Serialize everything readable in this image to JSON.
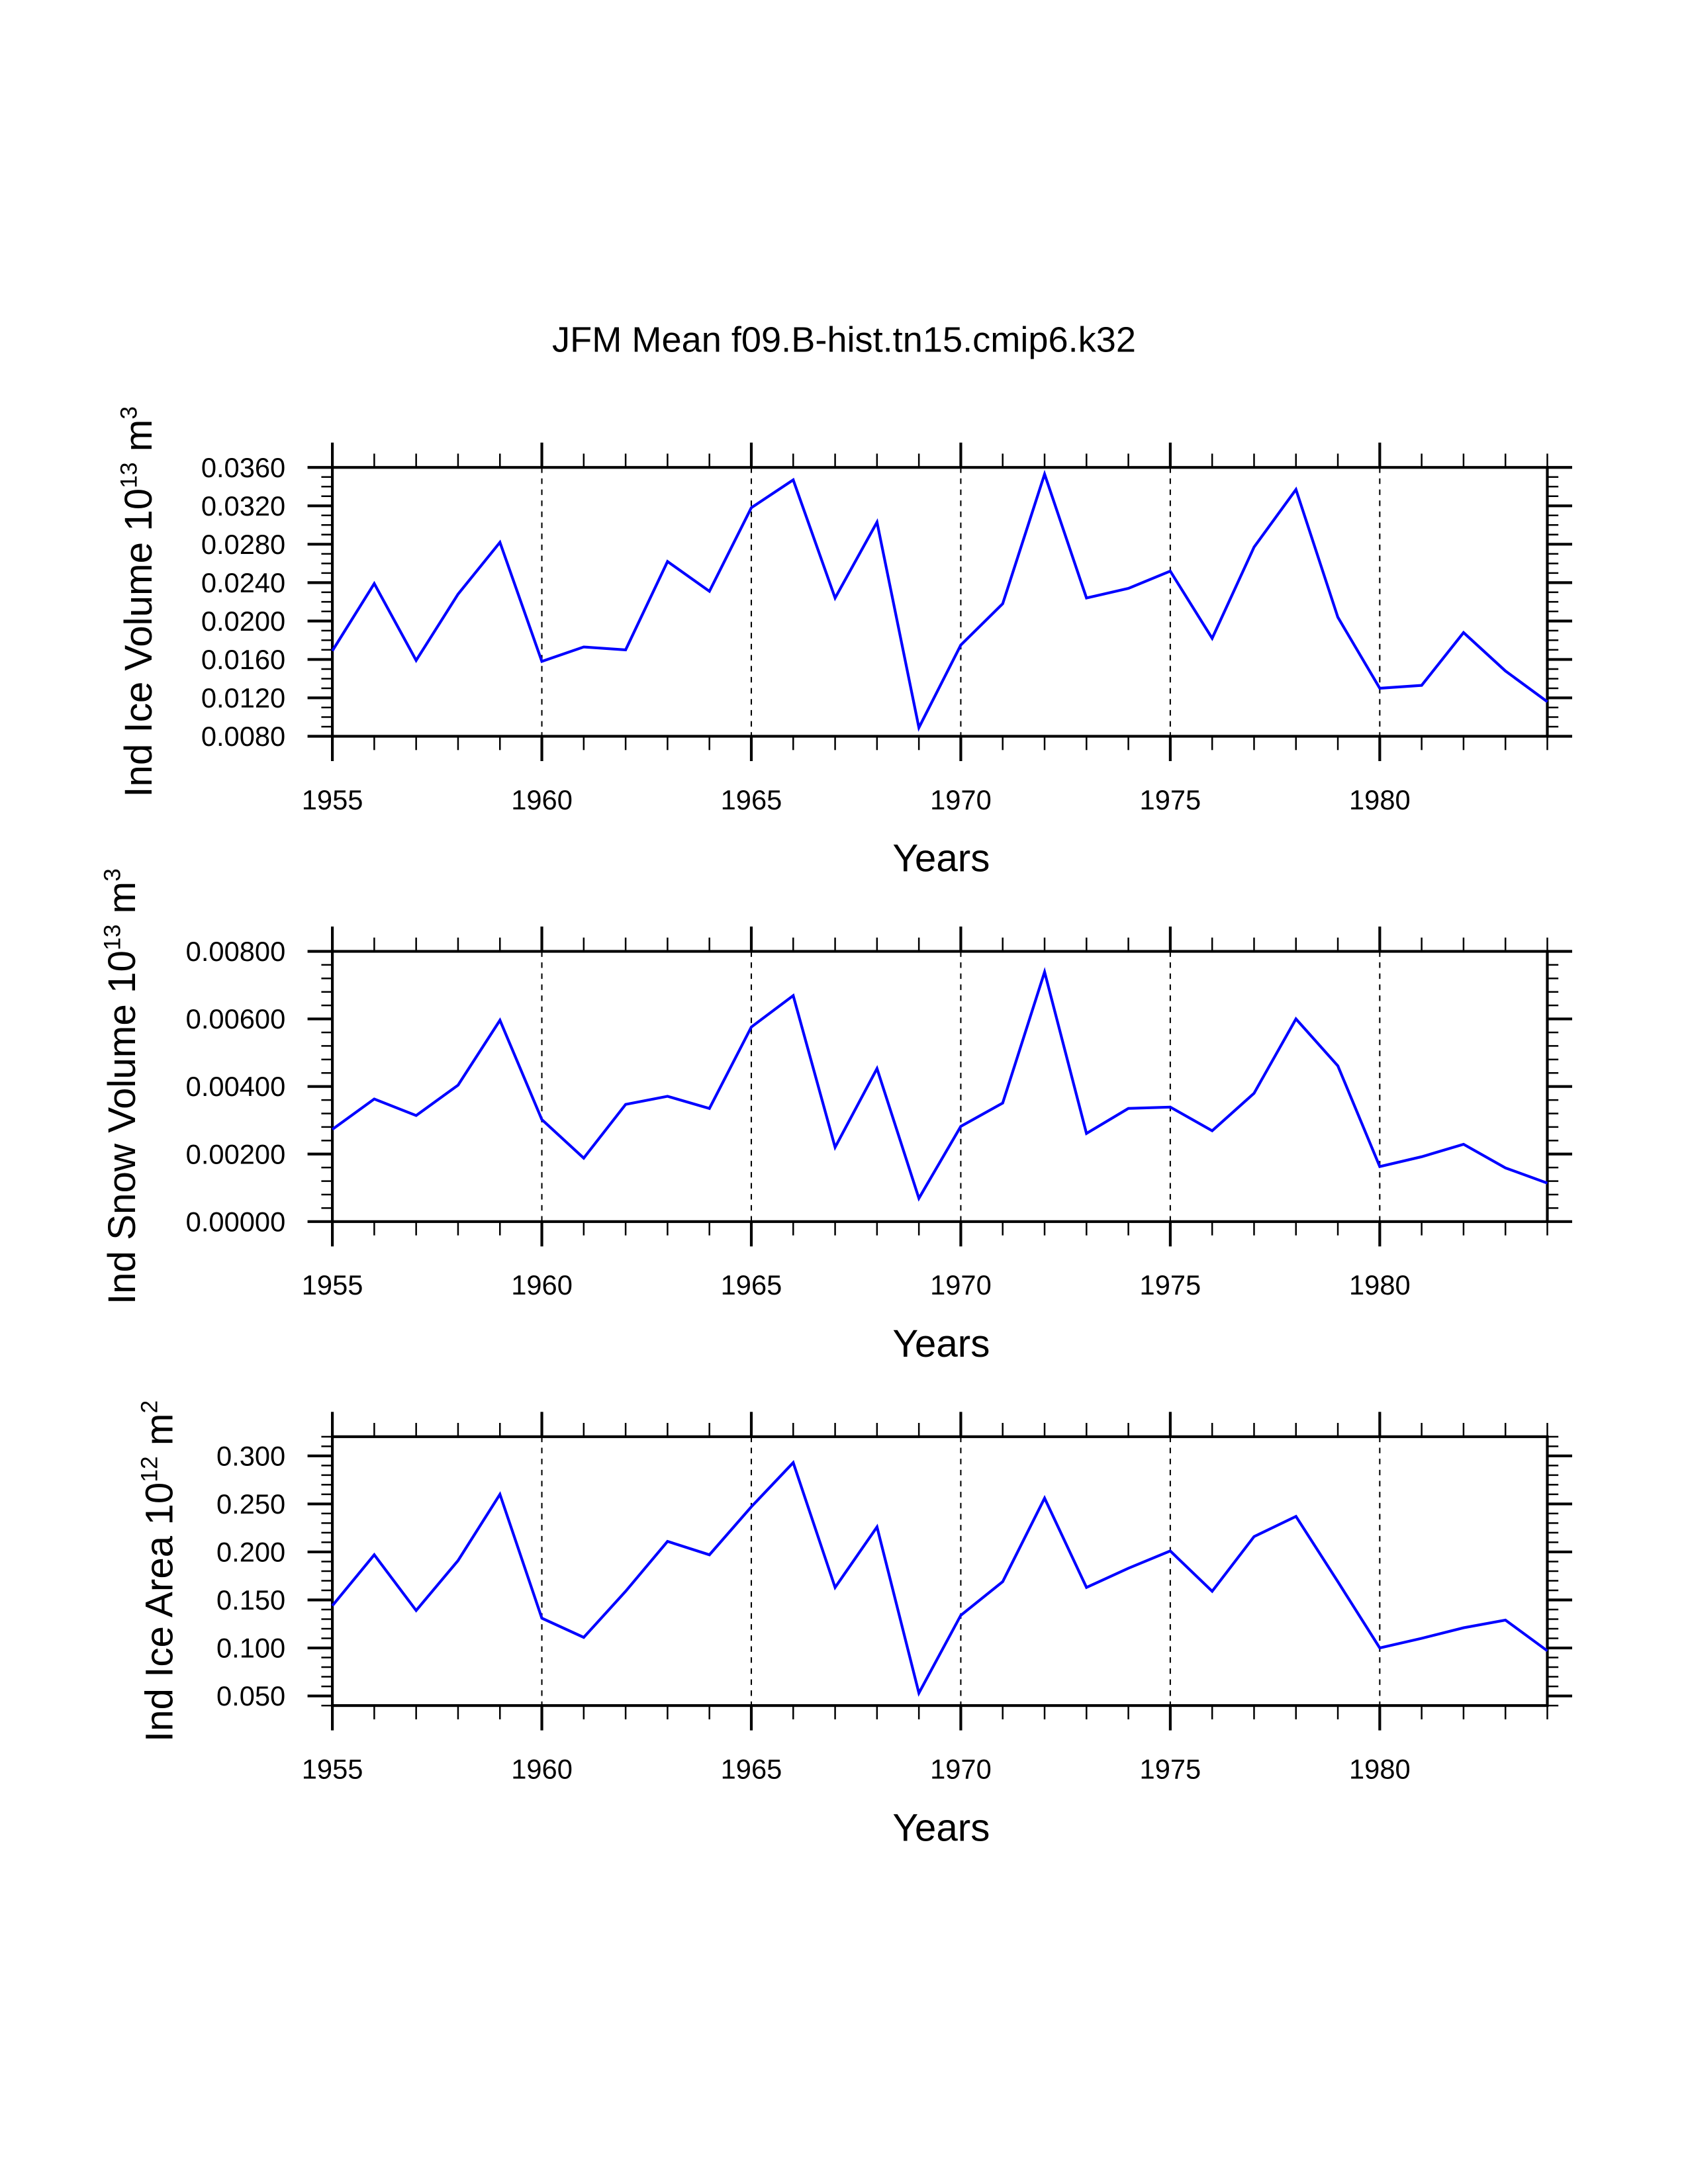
{
  "chart_data": [
    {
      "type": "line",
      "title": "JFM Mean f09.B-hist.tn15.cmip6.k32",
      "xlabel": "Years",
      "ylabel": {
        "text": "Ind Ice Volume 10",
        "exp": "13",
        "unit": " m",
        "unit_exp": "3"
      },
      "xlim": [
        1955,
        1984
      ],
      "ylim": [
        0.008,
        0.036
      ],
      "xticks": [
        "1955",
        "1960",
        "1965",
        "1970",
        "1975",
        "1980"
      ],
      "yticks": [
        "0.0080",
        "0.0120",
        "0.0160",
        "0.0200",
        "0.0240",
        "0.0280",
        "0.0320",
        "0.0360"
      ],
      "grid": "vertical dashed at major x ticks",
      "color": "#0000ff",
      "x": [
        1955,
        1956,
        1957,
        1958,
        1959,
        1960,
        1961,
        1962,
        1963,
        1964,
        1965,
        1966,
        1967,
        1968,
        1969,
        1970,
        1971,
        1972,
        1973,
        1974,
        1975,
        1976,
        1977,
        1978,
        1979,
        1980,
        1981,
        1982,
        1983,
        1984
      ],
      "values": [
        0.0169,
        0.0239,
        0.0159,
        0.0228,
        0.0282,
        0.0158,
        0.0173,
        0.017,
        0.0262,
        0.0231,
        0.0318,
        0.0347,
        0.0224,
        0.0303,
        0.0089,
        0.0175,
        0.0218,
        0.0353,
        0.0224,
        0.0234,
        0.0252,
        0.0182,
        0.0277,
        0.0337,
        0.0204,
        0.013,
        0.0133,
        0.0188,
        0.0148,
        0.0116
      ]
    },
    {
      "type": "line",
      "xlabel": "Years",
      "ylabel": {
        "text": "Ind Snow Volume 10",
        "exp": "13",
        "unit": " m",
        "unit_exp": "3"
      },
      "xlim": [
        1955,
        1984
      ],
      "ylim": [
        0.0,
        0.008
      ],
      "xticks": [
        "1955",
        "1960",
        "1965",
        "1970",
        "1975",
        "1980"
      ],
      "yticks": [
        "0.00000",
        "0.00200",
        "0.00400",
        "0.00600",
        "0.00800"
      ],
      "color": "#0000ff",
      "x": [
        1955,
        1956,
        1957,
        1958,
        1959,
        1960,
        1961,
        1962,
        1963,
        1964,
        1965,
        1966,
        1967,
        1968,
        1969,
        1970,
        1971,
        1972,
        1973,
        1974,
        1975,
        1976,
        1977,
        1978,
        1979,
        1980,
        1981,
        1982,
        1983,
        1984
      ],
      "values": [
        0.00273,
        0.00363,
        0.00314,
        0.00404,
        0.00596,
        0.00302,
        0.00188,
        0.00347,
        0.00371,
        0.00335,
        0.00576,
        0.00669,
        0.0022,
        0.00453,
        0.00069,
        0.00282,
        0.00351,
        0.00739,
        0.00261,
        0.00335,
        0.00339,
        0.00269,
        0.0038,
        0.006,
        0.00461,
        0.00163,
        0.00192,
        0.00229,
        0.00159,
        0.00114
      ]
    },
    {
      "type": "line",
      "xlabel": "Years",
      "ylabel": {
        "text": "Ind Ice Area 10",
        "exp": "12",
        "unit": " m",
        "unit_exp": "2"
      },
      "xlim": [
        1955,
        1984
      ],
      "ylim": [
        0.04,
        0.32
      ],
      "xticks": [
        "1955",
        "1960",
        "1965",
        "1970",
        "1975",
        "1980"
      ],
      "yticks": [
        "0.050",
        "0.100",
        "0.150",
        "0.200",
        "0.250",
        "0.300"
      ],
      "color": "#0000ff",
      "x": [
        1955,
        1956,
        1957,
        1958,
        1959,
        1960,
        1961,
        1962,
        1963,
        1964,
        1965,
        1966,
        1967,
        1968,
        1969,
        1970,
        1971,
        1972,
        1973,
        1974,
        1975,
        1976,
        1977,
        1978,
        1979,
        1980,
        1981,
        1982,
        1983,
        1984
      ],
      "values": [
        0.144,
        0.197,
        0.139,
        0.191,
        0.26,
        0.131,
        0.111,
        0.159,
        0.211,
        0.197,
        0.247,
        0.293,
        0.163,
        0.226,
        0.053,
        0.134,
        0.169,
        0.256,
        0.163,
        0.183,
        0.201,
        0.159,
        0.216,
        0.237,
        0.169,
        0.1,
        0.11,
        0.121,
        0.129,
        0.097
      ]
    }
  ]
}
